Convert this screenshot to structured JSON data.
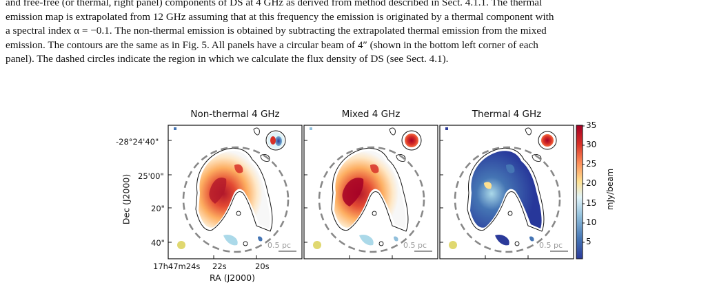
{
  "caption": {
    "line1": "and free-free (or thermal, right panel) components of DS at 4 GHz as derived from method described in Sect. 4.1.1. The thermal",
    "line2": "emission map is extrapolated from 12 GHz assuming that at this frequency the emission is originated by a thermal component with",
    "line3": "a spectral index α = −0.1. The non-thermal emission is obtained by subtracting the extrapolated thermal emission from the mixed",
    "line4": "emission. The contours are the same as in Fig. 5. All panels have a circular beam of 4″ (shown in the bottom left corner of each",
    "line5": "panel). The dashed circles indicate the region in which we calculate the flux density of DS (see Sect. 4.1)."
  },
  "figure": {
    "panels": [
      {
        "title": "Non-thermal 4 GHz",
        "scalebar": "0.5 pc",
        "palette": "mixed-red-core"
      },
      {
        "title": "Mixed 4 GHz",
        "scalebar": "0.5 pc",
        "palette": "mixed-red-core"
      },
      {
        "title": "Thermal 4 GHz",
        "scalebar": "0.5 pc",
        "palette": "mostly-blue"
      }
    ],
    "y_ticks": [
      "-28°24'40\"",
      "25'00\"",
      "20\"",
      "40\""
    ],
    "x_ticks": [
      "17h47m24s",
      "22s",
      "20s"
    ],
    "y_label": "Dec (J2000)",
    "x_label": "RA (J2000)",
    "colorbar": {
      "label": "mJy/beam",
      "ticks": [
        "35",
        "30",
        "25",
        "20",
        "15",
        "10",
        "5"
      ],
      "min": 0,
      "max": 35,
      "colormap": [
        "#2b3a9a",
        "#4575b4",
        "#91bfdb",
        "#e0f3f8",
        "#fee090",
        "#fc8d59",
        "#d73027",
        "#a50026"
      ]
    },
    "colors": {
      "dashed_circle": "#888888",
      "beam": "#e0d870",
      "contour_white": "#ffffff",
      "contour_black": "#111111"
    }
  }
}
